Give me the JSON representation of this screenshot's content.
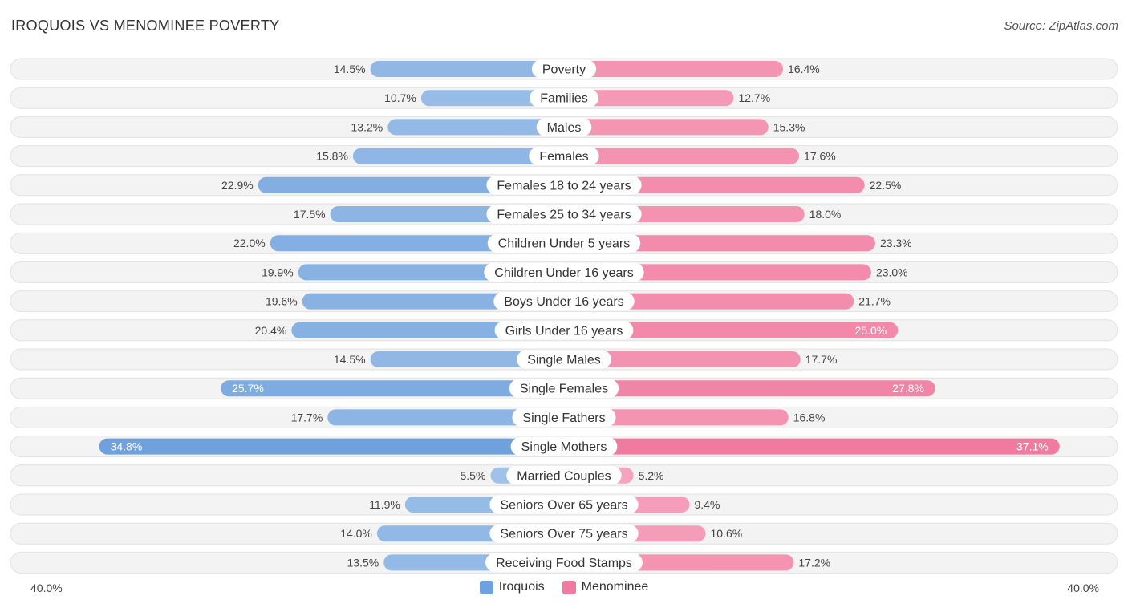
{
  "title": "IROQUOIS VS MENOMINEE POVERTY",
  "source": "Source: ZipAtlas.com",
  "colors": {
    "left": "#6fa1dc",
    "right": "#f07ba0",
    "left_light": "#a9c8ec",
    "right_light": "#f7aac3"
  },
  "legend": {
    "left_label": "Iroquois",
    "right_label": "Menominee"
  },
  "axis": {
    "left_label": "40.0%",
    "right_label": "40.0%"
  },
  "chart_data": {
    "type": "bar",
    "orientation": "horizontal-diverging",
    "title": "IROQUOIS VS MENOMINEE POVERTY",
    "xlim": [
      -40,
      40
    ],
    "categories": [
      "Poverty",
      "Families",
      "Males",
      "Females",
      "Females 18 to 24 years",
      "Females 25 to 34 years",
      "Children Under 5 years",
      "Children Under 16 years",
      "Boys Under 16 years",
      "Girls Under 16 years",
      "Single Males",
      "Single Females",
      "Single Fathers",
      "Single Mothers",
      "Married Couples",
      "Seniors Over 65 years",
      "Seniors Over 75 years",
      "Receiving Food Stamps"
    ],
    "series": [
      {
        "name": "Iroquois",
        "values": [
          14.5,
          10.7,
          13.2,
          15.8,
          22.9,
          17.5,
          22.0,
          19.9,
          19.6,
          20.4,
          14.5,
          25.7,
          17.7,
          34.8,
          5.5,
          11.9,
          14.0,
          13.5
        ],
        "labels": [
          "14.5%",
          "10.7%",
          "13.2%",
          "15.8%",
          "22.9%",
          "17.5%",
          "22.0%",
          "19.9%",
          "19.6%",
          "20.4%",
          "14.5%",
          "25.7%",
          "17.7%",
          "34.8%",
          "5.5%",
          "11.9%",
          "14.0%",
          "13.5%"
        ]
      },
      {
        "name": "Menominee",
        "values": [
          16.4,
          12.7,
          15.3,
          17.6,
          22.5,
          18.0,
          23.3,
          23.0,
          21.7,
          25.0,
          17.7,
          27.8,
          16.8,
          37.1,
          5.2,
          9.4,
          10.6,
          17.2
        ],
        "labels": [
          "16.4%",
          "12.7%",
          "15.3%",
          "17.6%",
          "22.5%",
          "18.0%",
          "23.3%",
          "23.0%",
          "21.7%",
          "25.0%",
          "17.7%",
          "27.8%",
          "16.8%",
          "37.1%",
          "5.2%",
          "9.4%",
          "10.6%",
          "17.2%"
        ]
      }
    ],
    "legend": [
      "Iroquois",
      "Menominee"
    ],
    "legend_position": "bottom-center"
  }
}
